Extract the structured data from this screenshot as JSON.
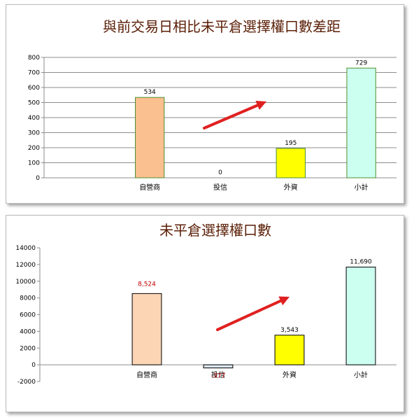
{
  "chart_data": [
    {
      "type": "bar",
      "title": "與前交易日相比未平倉選擇權口數差距",
      "categories": [
        "",
        "自營商",
        "投信",
        "外資",
        "小計"
      ],
      "values": [
        null,
        534,
        0,
        195,
        729
      ],
      "labels": [
        "",
        "534",
        "0",
        "195",
        "729"
      ],
      "ylim": [
        0,
        800
      ],
      "yticks": [
        0,
        100,
        200,
        300,
        400,
        500,
        600,
        700,
        800
      ],
      "grid": true,
      "colors": {
        "bars": [
          "#ffffff",
          "#fac090",
          "#ffffff",
          "#ffff00",
          "#ccfff0"
        ],
        "outline": "#4f8f2f",
        "label": "#000000",
        "arrow": "#e02020"
      }
    },
    {
      "type": "bar",
      "title": "未平倉選擇權口數",
      "categories": [
        "",
        "自營商",
        "投信",
        "外資",
        "小計"
      ],
      "values": [
        null,
        8524,
        -377,
        3543,
        11690
      ],
      "labels": [
        "",
        "8,524",
        "-377",
        "3,543",
        "11,690"
      ],
      "ylim": [
        -2000,
        14000
      ],
      "yticks": [
        -2000,
        0,
        2000,
        4000,
        6000,
        8000,
        10000,
        12000,
        14000
      ],
      "grid": false,
      "colors": {
        "bars": [
          "#ffffff",
          "#fcd5b5",
          "#dce6f2",
          "#ffff00",
          "#ccfff0"
        ],
        "outline": "#000000",
        "label_default": "#000000",
        "label_highlight": "#c00000",
        "arrow": "#e02020"
      },
      "highlight_labels": [
        "8,524",
        "-377"
      ]
    }
  ]
}
